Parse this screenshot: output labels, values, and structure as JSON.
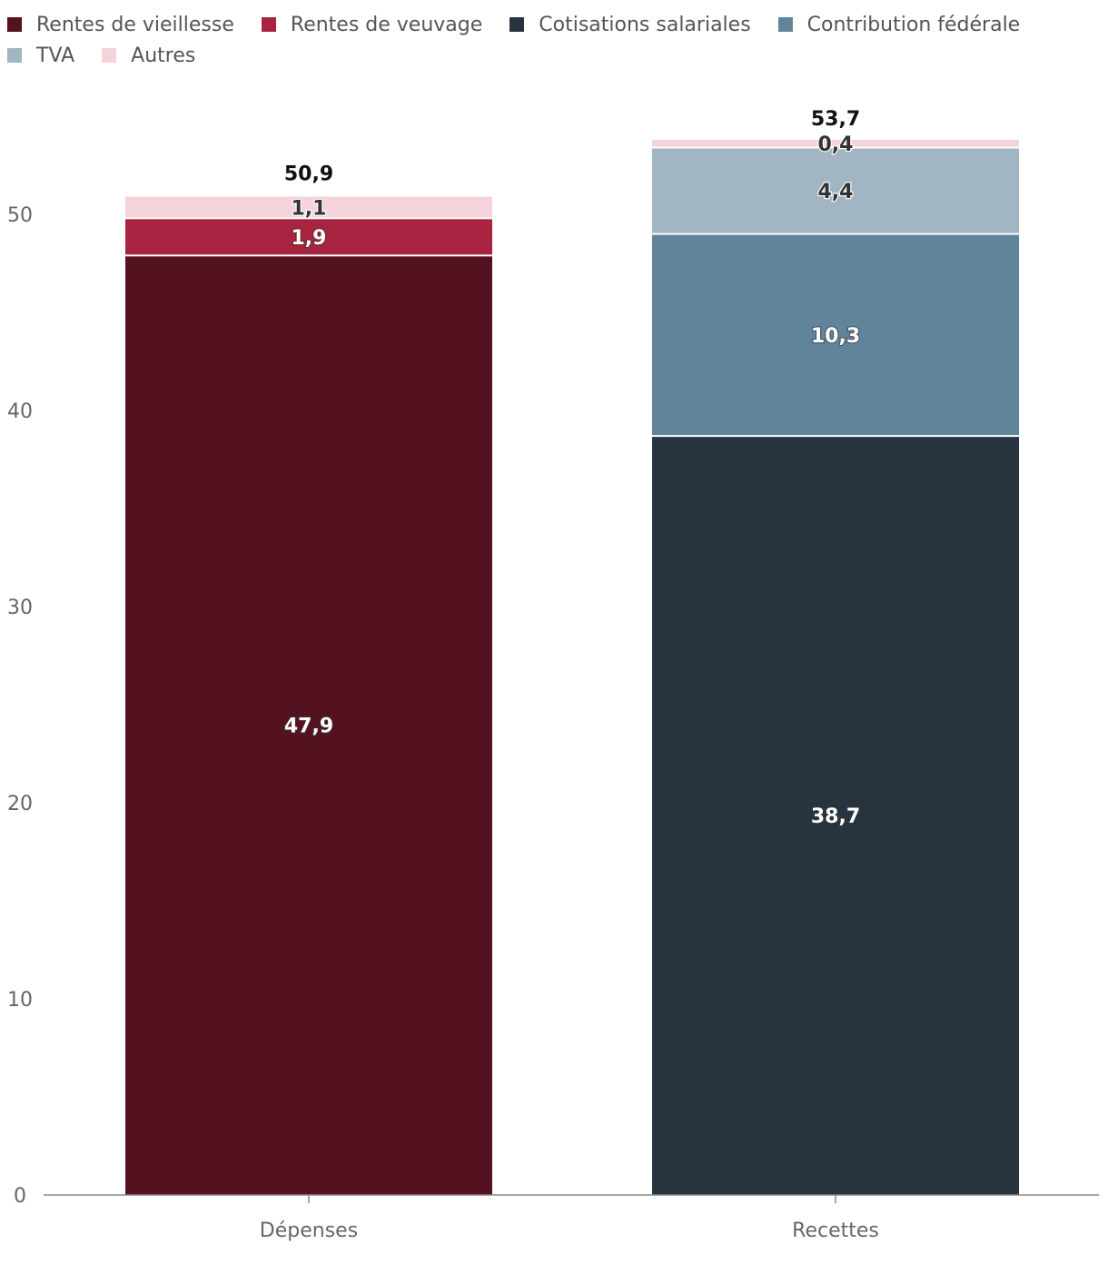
{
  "chart_data": {
    "type": "bar",
    "stacked": true,
    "categories": [
      "Dépenses",
      "Recettes"
    ],
    "series": [
      {
        "name": "Rentes de vieillesse",
        "color": "#541220",
        "values": [
          47.9,
          null
        ],
        "labels": [
          "47,9",
          ""
        ]
      },
      {
        "name": "Rentes de veuvage",
        "color": "#a8233f",
        "values": [
          1.9,
          null
        ],
        "labels": [
          "1,9",
          ""
        ]
      },
      {
        "name": "Cotisations salariales",
        "color": "#27343f",
        "values": [
          null,
          38.7
        ],
        "labels": [
          "",
          "38,7"
        ]
      },
      {
        "name": "Contribution fédérale",
        "color": "#61849b",
        "values": [
          null,
          10.3
        ],
        "labels": [
          "",
          "10,3"
        ]
      },
      {
        "name": "TVA",
        "color": "#a1b5c3",
        "values": [
          null,
          4.4
        ],
        "labels": [
          "",
          "4,4"
        ]
      },
      {
        "name": "Autres",
        "color": "#f5d3db",
        "values": [
          1.1,
          0.4
        ],
        "labels": [
          "1,1",
          "0,4"
        ]
      }
    ],
    "totals": [
      50.9,
      53.7
    ],
    "total_labels": [
      "50,9",
      "53,7"
    ],
    "y_ticks": [
      "0",
      "10",
      "20",
      "30",
      "40",
      "50"
    ],
    "y_tick_values": [
      0,
      10,
      20,
      30,
      40,
      50
    ],
    "ylim": [
      0,
      57
    ],
    "legend_position": "top-left",
    "grid": false
  }
}
